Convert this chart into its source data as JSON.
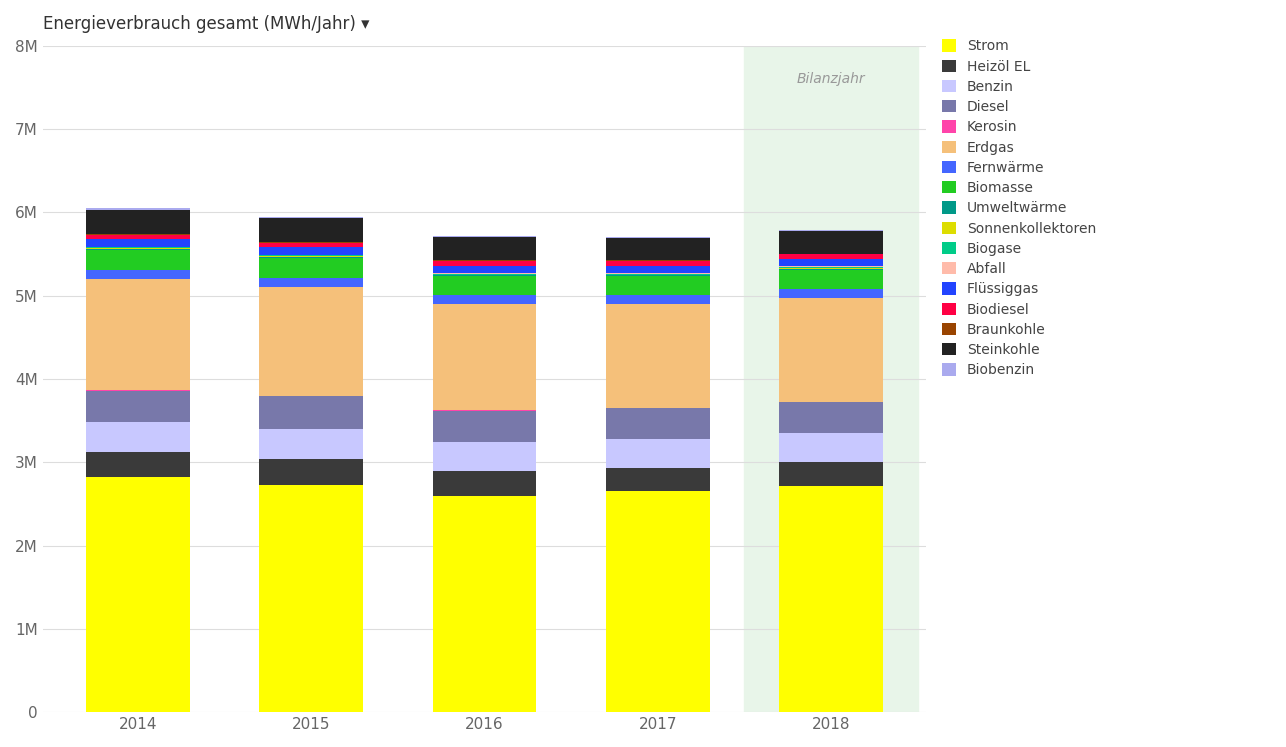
{
  "years": [
    "2014",
    "2015",
    "2016",
    "2017",
    "2018"
  ],
  "title": "Energieverbrauch gesamt (MWh/Jahr) ▾",
  "bilanzjahr_label": "Bilanzjahr",
  "bilanzjahr_year": "2018",
  "background_color": "#ffffff",
  "bilanzjahr_bg": "#e8f5e9",
  "categories": [
    "Strom",
    "Heizöl EL",
    "Benzin",
    "Diesel",
    "Kerosin",
    "Erdgas",
    "Fernwärme",
    "Biomasse",
    "Umweltwärme",
    "Sonnenkollektoren",
    "Biogase",
    "Abfall",
    "Flüssiggas",
    "Biodiesel",
    "Braunkohle",
    "Steinkohle",
    "Biobenzin"
  ],
  "colors": [
    "#ffff00",
    "#3a3a3a",
    "#c8c8ff",
    "#7878aa",
    "#ff44aa",
    "#f5c07a",
    "#4466ff",
    "#22cc22",
    "#009988",
    "#dddd00",
    "#00cc88",
    "#ffbbaa",
    "#2244ff",
    "#ff0044",
    "#994400",
    "#222222",
    "#aaaaee"
  ],
  "values": {
    "Strom": [
      2820000,
      2730000,
      2590000,
      2650000,
      2710000
    ],
    "Heizöl EL": [
      300000,
      310000,
      300000,
      280000,
      290000
    ],
    "Benzin": [
      360000,
      360000,
      350000,
      350000,
      350000
    ],
    "Diesel": [
      380000,
      390000,
      380000,
      370000,
      370000
    ],
    "Kerosin": [
      5000,
      5000,
      5000,
      5000,
      5000
    ],
    "Erdgas": [
      1330000,
      1310000,
      1280000,
      1250000,
      1250000
    ],
    "Fernwärme": [
      110000,
      110000,
      100000,
      100000,
      100000
    ],
    "Biomasse": [
      240000,
      235000,
      225000,
      225000,
      235000
    ],
    "Umweltwärme": [
      15000,
      14000,
      14000,
      14000,
      14000
    ],
    "Sonnenkollektoren": [
      8000,
      8000,
      8000,
      8000,
      8000
    ],
    "Biogase": [
      12000,
      12000,
      12000,
      12000,
      12000
    ],
    "Abfall": [
      8000,
      8000,
      8000,
      8000,
      8000
    ],
    "Flüssiggas": [
      90000,
      90000,
      88000,
      88000,
      88000
    ],
    "Biodiesel": [
      55000,
      55000,
      54000,
      54000,
      54000
    ],
    "Braunkohle": [
      10000,
      10000,
      10000,
      10000,
      10000
    ],
    "Steinkohle": [
      290000,
      285000,
      275000,
      270000,
      270000
    ],
    "Biobenzin": [
      15000,
      15000,
      15000,
      15000,
      15000
    ]
  },
  "ylim": [
    0,
    8000000
  ],
  "yticks": [
    0,
    1000000,
    2000000,
    3000000,
    4000000,
    5000000,
    6000000,
    7000000,
    8000000
  ],
  "ytick_labels": [
    "0",
    "1M",
    "2M",
    "3M",
    "4M",
    "5M",
    "6M",
    "7M",
    "8M"
  ],
  "grid_color": "#dddddd",
  "title_fontsize": 12,
  "tick_fontsize": 11,
  "legend_fontsize": 10,
  "bar_width": 0.6
}
